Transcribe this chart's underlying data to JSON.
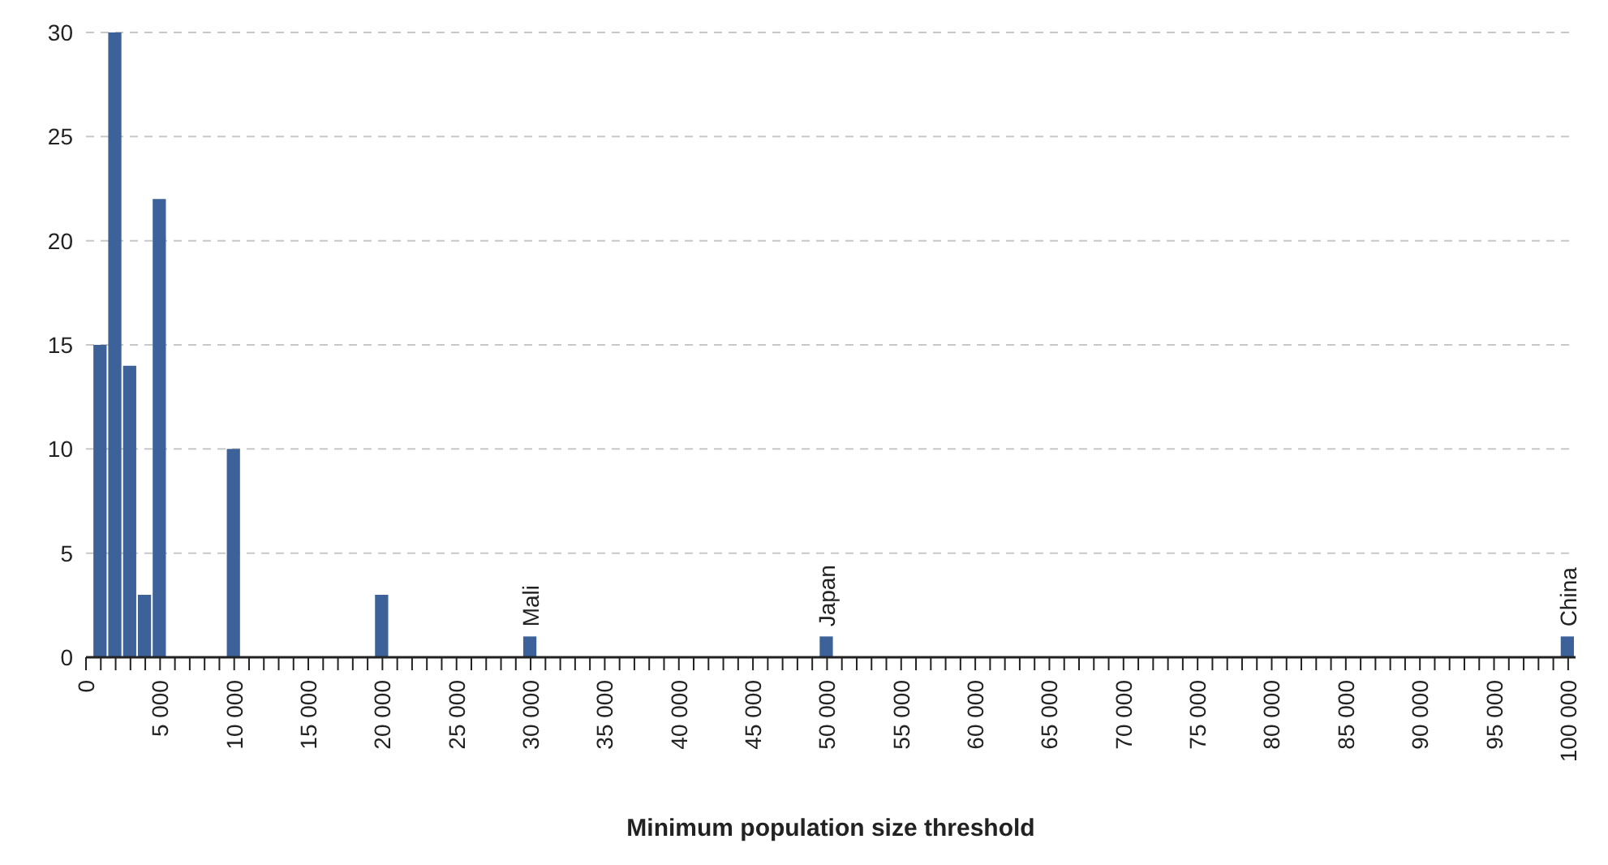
{
  "chart_data": {
    "type": "bar",
    "xlabel": "Minimum population size threshold",
    "color": "#3d6299",
    "x": [
      1000,
      2000,
      3000,
      4000,
      5000,
      10000,
      20000,
      30000,
      50000,
      100000
    ],
    "values": [
      15,
      30,
      14,
      3,
      22,
      10,
      3,
      1,
      1,
      1
    ],
    "xlim": [
      0,
      100500
    ],
    "xticks": [
      {
        "value": 0,
        "label": "0"
      },
      {
        "value": 1000,
        "label": null
      },
      {
        "value": 2000,
        "label": null
      },
      {
        "value": 3000,
        "label": null
      },
      {
        "value": 4000,
        "label": null
      },
      {
        "value": 5000,
        "label": "5 000"
      },
      {
        "value": 6000,
        "label": null
      },
      {
        "value": 7000,
        "label": null
      },
      {
        "value": 8000,
        "label": null
      },
      {
        "value": 9000,
        "label": null
      },
      {
        "value": 10000,
        "label": "10 000"
      },
      {
        "value": 11000,
        "label": null
      },
      {
        "value": 12000,
        "label": null
      },
      {
        "value": 13000,
        "label": null
      },
      {
        "value": 14000,
        "label": null
      },
      {
        "value": 15000,
        "label": "15 000"
      },
      {
        "value": 16000,
        "label": null
      },
      {
        "value": 17000,
        "label": null
      },
      {
        "value": 18000,
        "label": null
      },
      {
        "value": 19000,
        "label": null
      },
      {
        "value": 20000,
        "label": "20 000"
      },
      {
        "value": 21000,
        "label": null
      },
      {
        "value": 22000,
        "label": null
      },
      {
        "value": 23000,
        "label": null
      },
      {
        "value": 24000,
        "label": null
      },
      {
        "value": 25000,
        "label": "25 000"
      },
      {
        "value": 26000,
        "label": null
      },
      {
        "value": 27000,
        "label": null
      },
      {
        "value": 28000,
        "label": null
      },
      {
        "value": 29000,
        "label": null
      },
      {
        "value": 30000,
        "label": "30 000"
      },
      {
        "value": 31000,
        "label": null
      },
      {
        "value": 32000,
        "label": null
      },
      {
        "value": 33000,
        "label": null
      },
      {
        "value": 34000,
        "label": null
      },
      {
        "value": 35000,
        "label": "35 000"
      },
      {
        "value": 36000,
        "label": null
      },
      {
        "value": 37000,
        "label": null
      },
      {
        "value": 38000,
        "label": null
      },
      {
        "value": 39000,
        "label": null
      },
      {
        "value": 40000,
        "label": "40 000"
      },
      {
        "value": 41000,
        "label": null
      },
      {
        "value": 42000,
        "label": null
      },
      {
        "value": 43000,
        "label": null
      },
      {
        "value": 44000,
        "label": null
      },
      {
        "value": 45000,
        "label": "45 000"
      },
      {
        "value": 46000,
        "label": null
      },
      {
        "value": 47000,
        "label": null
      },
      {
        "value": 48000,
        "label": null
      },
      {
        "value": 49000,
        "label": null
      },
      {
        "value": 50000,
        "label": "50 000"
      },
      {
        "value": 51000,
        "label": null
      },
      {
        "value": 52000,
        "label": null
      },
      {
        "value": 53000,
        "label": null
      },
      {
        "value": 54000,
        "label": null
      },
      {
        "value": 55000,
        "label": "55 000"
      },
      {
        "value": 56000,
        "label": null
      },
      {
        "value": 57000,
        "label": null
      },
      {
        "value": 58000,
        "label": null
      },
      {
        "value": 59000,
        "label": null
      },
      {
        "value": 60000,
        "label": "60 000"
      },
      {
        "value": 61000,
        "label": null
      },
      {
        "value": 62000,
        "label": null
      },
      {
        "value": 63000,
        "label": null
      },
      {
        "value": 64000,
        "label": null
      },
      {
        "value": 65000,
        "label": "65 000"
      },
      {
        "value": 66000,
        "label": null
      },
      {
        "value": 67000,
        "label": null
      },
      {
        "value": 68000,
        "label": null
      },
      {
        "value": 69000,
        "label": null
      },
      {
        "value": 70000,
        "label": "70 000"
      },
      {
        "value": 71000,
        "label": null
      },
      {
        "value": 72000,
        "label": null
      },
      {
        "value": 73000,
        "label": null
      },
      {
        "value": 74000,
        "label": null
      },
      {
        "value": 75000,
        "label": "75 000"
      },
      {
        "value": 76000,
        "label": null
      },
      {
        "value": 77000,
        "label": null
      },
      {
        "value": 78000,
        "label": null
      },
      {
        "value": 79000,
        "label": null
      },
      {
        "value": 80000,
        "label": "80 000"
      },
      {
        "value": 81000,
        "label": null
      },
      {
        "value": 82000,
        "label": null
      },
      {
        "value": 83000,
        "label": null
      },
      {
        "value": 84000,
        "label": null
      },
      {
        "value": 85000,
        "label": "85 000"
      },
      {
        "value": 86000,
        "label": null
      },
      {
        "value": 87000,
        "label": null
      },
      {
        "value": 88000,
        "label": null
      },
      {
        "value": 89000,
        "label": null
      },
      {
        "value": 90000,
        "label": "90 000"
      },
      {
        "value": 91000,
        "label": null
      },
      {
        "value": 92000,
        "label": null
      },
      {
        "value": 93000,
        "label": null
      },
      {
        "value": 94000,
        "label": null
      },
      {
        "value": 95000,
        "label": "95 000"
      },
      {
        "value": 96000,
        "label": null
      },
      {
        "value": 97000,
        "label": null
      },
      {
        "value": 98000,
        "label": null
      },
      {
        "value": 99000,
        "label": null
      },
      {
        "value": 100000,
        "label": "100 000"
      }
    ],
    "ylim": [
      0,
      30
    ],
    "yticks": [
      0,
      5,
      10,
      15,
      20,
      25,
      30
    ],
    "grid": "y",
    "annotations": [
      {
        "text": "Mali",
        "x": 30000,
        "y": 1
      },
      {
        "text": "Japan",
        "x": 50000,
        "y": 1
      },
      {
        "text": "China",
        "x": 100000,
        "y": 1
      }
    ]
  }
}
